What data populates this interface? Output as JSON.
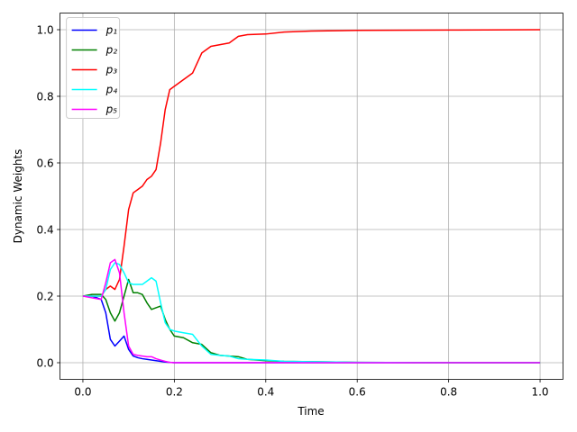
{
  "chart_data": {
    "type": "line",
    "xlabel": "Time",
    "ylabel": "Dynamic Weights",
    "x": [
      0,
      0.02,
      0.04,
      0.05,
      0.06,
      0.07,
      0.08,
      0.09,
      0.1,
      0.11,
      0.12,
      0.13,
      0.14,
      0.15,
      0.16,
      0.17,
      0.18,
      0.19,
      0.2,
      0.22,
      0.24,
      0.26,
      0.28,
      0.3,
      0.32,
      0.34,
      0.36,
      0.4,
      0.44,
      0.5,
      0.6,
      0.8,
      1.0
    ],
    "series": [
      {
        "name": "p₁",
        "color": "#0000ff",
        "values": [
          0.2,
          0.2,
          0.19,
          0.15,
          0.07,
          0.05,
          0.065,
          0.08,
          0.04,
          0.02,
          0.015,
          0.012,
          0.01,
          0.008,
          0.006,
          0.004,
          0.002,
          0.001,
          0,
          0,
          0,
          0,
          0,
          0,
          0,
          0,
          0,
          0,
          0,
          0,
          0,
          0,
          0
        ]
      },
      {
        "name": "p₂",
        "color": "#008000",
        "values": [
          0.2,
          0.205,
          0.205,
          0.19,
          0.15,
          0.125,
          0.15,
          0.2,
          0.25,
          0.21,
          0.21,
          0.205,
          0.18,
          0.16,
          0.165,
          0.17,
          0.13,
          0.1,
          0.08,
          0.075,
          0.06,
          0.055,
          0.03,
          0.022,
          0.02,
          0.018,
          0.01,
          0.006,
          0.004,
          0.003,
          0.001,
          0,
          0
        ]
      },
      {
        "name": "p₃",
        "color": "#ff0000",
        "values": [
          0.2,
          0.2,
          0.2,
          0.22,
          0.23,
          0.22,
          0.25,
          0.35,
          0.46,
          0.51,
          0.52,
          0.53,
          0.55,
          0.56,
          0.58,
          0.66,
          0.76,
          0.82,
          0.83,
          0.85,
          0.87,
          0.93,
          0.95,
          0.955,
          0.96,
          0.98,
          0.985,
          0.987,
          0.993,
          0.996,
          0.998,
          0.999,
          1.0
        ]
      },
      {
        "name": "p₄",
        "color": "#00ffff",
        "values": [
          0.2,
          0.2,
          0.2,
          0.22,
          0.28,
          0.3,
          0.295,
          0.27,
          0.24,
          0.235,
          0.235,
          0.235,
          0.245,
          0.255,
          0.245,
          0.18,
          0.12,
          0.1,
          0.095,
          0.09,
          0.085,
          0.05,
          0.025,
          0.022,
          0.02,
          0.012,
          0.01,
          0.008,
          0.004,
          0.003,
          0.001,
          0,
          0
        ]
      },
      {
        "name": "p₅",
        "color": "#ff00ff",
        "values": [
          0.2,
          0.195,
          0.19,
          0.24,
          0.3,
          0.31,
          0.27,
          0.15,
          0.05,
          0.025,
          0.022,
          0.02,
          0.018,
          0.018,
          0.012,
          0.008,
          0.004,
          0.001,
          0,
          0,
          0,
          0,
          0,
          0,
          0,
          0,
          0,
          0,
          0,
          0,
          0,
          0,
          0
        ]
      }
    ],
    "xlim": [
      -0.05,
      1.05
    ],
    "xticks": [
      {
        "value": 0,
        "label": "0.0"
      },
      0.2,
      0.4,
      0.6,
      0.8,
      {
        "value": 1,
        "label": "1.0"
      }
    ],
    "ylim": [
      -0.05,
      1.05
    ],
    "yticks": [
      {
        "value": 0,
        "label": "0.0"
      },
      0.2,
      0.4,
      0.6,
      0.8,
      {
        "value": 1,
        "label": "1.0"
      }
    ],
    "grid": true,
    "legend": "upper left"
  }
}
